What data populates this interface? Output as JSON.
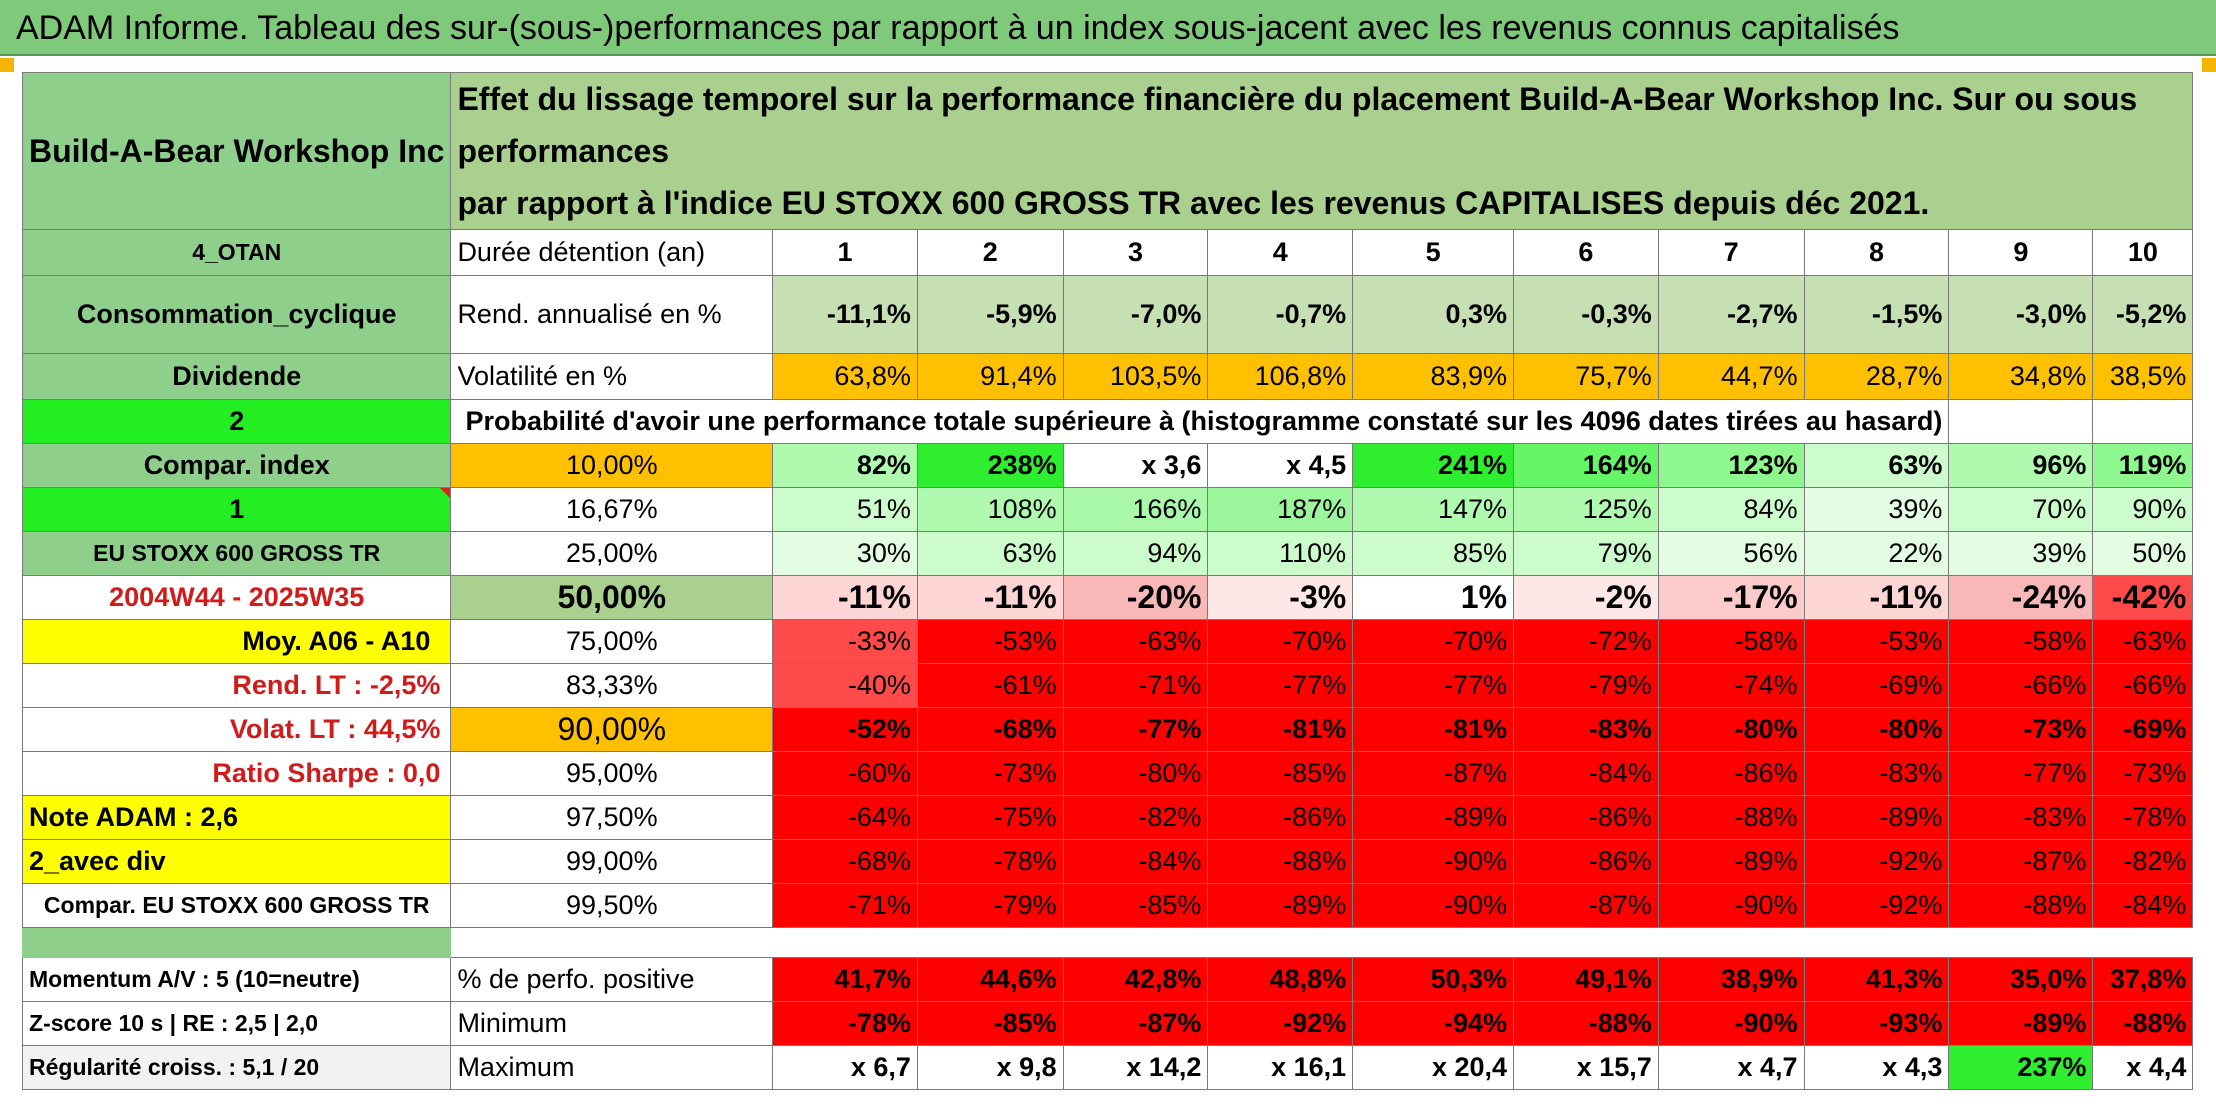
{
  "banner": "ADAM Informe. Tableau des sur-(sous-)performances par rapport à un index sous-jacent avec les revenus connus capitalisés",
  "header": {
    "company": "Build-A-Bear Workshop Inc",
    "description_l1": "Effet du lissage temporel sur la performance financière du placement Build-A-Bear Workshop Inc. Sur ou sous performances",
    "description_l2": "par rapport à l'indice EU STOXX 600 GROSS TR avec les revenus CAPITALISES depuis déc 2021."
  },
  "left": {
    "code": "4_OTAN",
    "sector": "Consommation_cyclique",
    "type": "Dividende",
    "v2": "2",
    "compar_index": "Compar. index",
    "v1": "1",
    "index_name": "EU STOXX 600 GROSS TR",
    "period": "2004W44 - 2025W35",
    "moy": "Moy. A06 - A10",
    "rend_lt": "Rend. LT :    -2,5%",
    "volat_lt": "Volat. LT :    44,5%",
    "sharpe": "Ratio Sharpe :    0,0",
    "note": "Note ADAM : 2,6",
    "avec_div": "2_avec div",
    "compar_full": "Compar. EU STOXX 600 GROSS TR",
    "momentum": "Momentum A/V : 5 (10=neutre)",
    "zscore": "Z-score 10 s | RE : 2,5 | 2,0",
    "regularite": "Régularité croiss. : 5,1 / 20"
  },
  "labels": {
    "duree": "Durée détention (an)",
    "rend": "Rend. annualisé en %",
    "vol": "Volatilité en %",
    "proba": "Probabilité d'avoir une performance totale supérieure à (histogramme constaté sur les 4096 dates tirées au hasard)",
    "perf_pos": "% de perfo. positive",
    "minimum": "Minimum",
    "maximum": "Maximum"
  },
  "years": [
    "1",
    "2",
    "3",
    "4",
    "5",
    "6",
    "7",
    "8",
    "9",
    "10"
  ],
  "rend": [
    "-11,1%",
    "-5,9%",
    "-7,0%",
    "-0,7%",
    "0,3%",
    "-0,3%",
    "-2,7%",
    "-1,5%",
    "-3,0%",
    "-5,2%"
  ],
  "vol": [
    "63,8%",
    "91,4%",
    "103,5%",
    "106,8%",
    "83,9%",
    "75,7%",
    "44,7%",
    "28,7%",
    "34,8%",
    "38,5%"
  ],
  "percentiles": [
    {
      "p": "10,00%",
      "v": [
        "82%",
        "238%",
        "x 3,6",
        "x 4,5",
        "241%",
        "164%",
        "123%",
        "63%",
        "96%",
        "119%"
      ]
    },
    {
      "p": "16,67%",
      "v": [
        "51%",
        "108%",
        "166%",
        "187%",
        "147%",
        "125%",
        "84%",
        "39%",
        "70%",
        "90%"
      ]
    },
    {
      "p": "25,00%",
      "v": [
        "30%",
        "63%",
        "94%",
        "110%",
        "85%",
        "79%",
        "56%",
        "22%",
        "39%",
        "50%"
      ]
    },
    {
      "p": "50,00%",
      "v": [
        "-11%",
        "-11%",
        "-20%",
        "-3%",
        "1%",
        "-2%",
        "-17%",
        "-11%",
        "-24%",
        "-42%"
      ]
    },
    {
      "p": "75,00%",
      "v": [
        "-33%",
        "-53%",
        "-63%",
        "-70%",
        "-70%",
        "-72%",
        "-58%",
        "-53%",
        "-58%",
        "-63%"
      ]
    },
    {
      "p": "83,33%",
      "v": [
        "-40%",
        "-61%",
        "-71%",
        "-77%",
        "-77%",
        "-79%",
        "-74%",
        "-69%",
        "-66%",
        "-66%"
      ]
    },
    {
      "p": "90,00%",
      "v": [
        "-52%",
        "-68%",
        "-77%",
        "-81%",
        "-81%",
        "-83%",
        "-80%",
        "-80%",
        "-73%",
        "-69%"
      ]
    },
    {
      "p": "95,00%",
      "v": [
        "-60%",
        "-73%",
        "-80%",
        "-85%",
        "-87%",
        "-84%",
        "-86%",
        "-83%",
        "-77%",
        "-73%"
      ]
    },
    {
      "p": "97,50%",
      "v": [
        "-64%",
        "-75%",
        "-82%",
        "-86%",
        "-89%",
        "-86%",
        "-88%",
        "-89%",
        "-83%",
        "-78%"
      ]
    },
    {
      "p": "99,00%",
      "v": [
        "-68%",
        "-78%",
        "-84%",
        "-88%",
        "-90%",
        "-86%",
        "-89%",
        "-92%",
        "-87%",
        "-82%"
      ]
    },
    {
      "p": "99,50%",
      "v": [
        "-71%",
        "-79%",
        "-85%",
        "-89%",
        "-90%",
        "-87%",
        "-90%",
        "-92%",
        "-88%",
        "-84%"
      ]
    }
  ],
  "perf_pos": [
    "41,7%",
    "44,6%",
    "42,8%",
    "48,8%",
    "50,3%",
    "49,1%",
    "38,9%",
    "41,3%",
    "35,0%",
    "37,8%"
  ],
  "minimum": [
    "-78%",
    "-85%",
    "-87%",
    "-92%",
    "-94%",
    "-88%",
    "-90%",
    "-93%",
    "-89%",
    "-88%"
  ],
  "maximum": [
    "x 6,7",
    "x 9,8",
    "x 14,2",
    "x 16,1",
    "x 20,4",
    "x 15,7",
    "x 4,7",
    "x 4,3",
    "237%",
    "x 4,4"
  ]
}
